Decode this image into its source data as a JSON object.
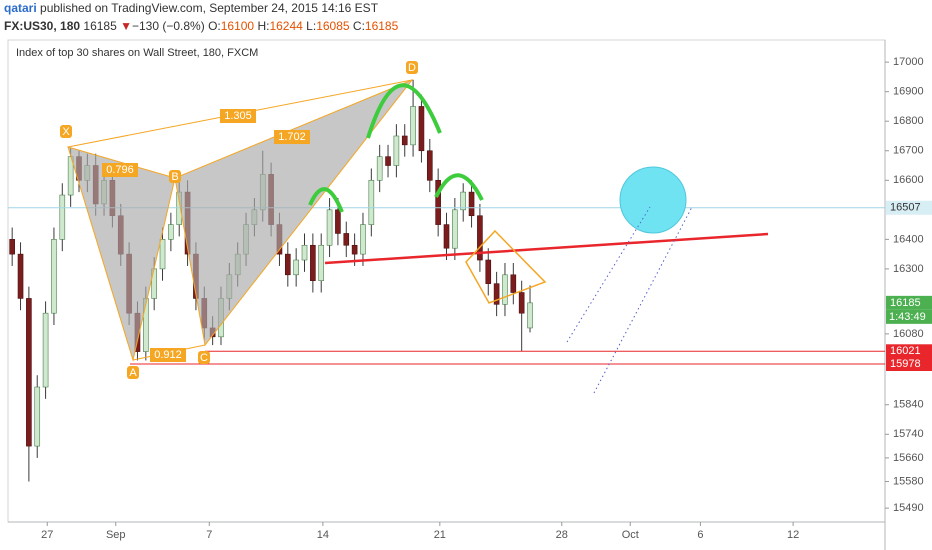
{
  "header": {
    "author": "qatari",
    "published": " published on TradingView.com, September 24, 2015 14:16 EST",
    "symbol": "FX:US30, 180",
    "last": 16185,
    "arrow": "▼",
    "change": "−130 (−0.8%)",
    "ohlc": [
      {
        "label": "O:",
        "value": 16100
      },
      {
        "label": "H:",
        "value": 16244
      },
      {
        "label": "L:",
        "value": 16085
      },
      {
        "label": "C:",
        "value": 16185
      }
    ]
  },
  "chart_data": {
    "type": "candlestick",
    "title": "Index of top 30 shares on Wall Street, 180, FXCM",
    "open": [
      16400,
      16350,
      16200,
      15700,
      15900,
      16150,
      16400,
      16550,
      16680,
      16600,
      16650,
      16520,
      16600,
      16480,
      16350,
      16150,
      16020,
      16200,
      16300,
      16400,
      16450,
      16560,
      16350,
      16200,
      16100,
      16070,
      16200,
      16280,
      16350,
      16450,
      16500,
      16620,
      16450,
      16350,
      16280,
      16330,
      16380,
      16260,
      16380,
      16500,
      16420,
      16380,
      16350,
      16450,
      16600,
      16680,
      16650,
      16750,
      16720,
      16850,
      16700,
      16600,
      16450,
      16370,
      16500,
      16560,
      16480,
      16330,
      16250,
      16180,
      16280,
      16220,
      16100
    ],
    "high": [
      16440,
      16390,
      16240,
      15940,
      16190,
      16440,
      16590,
      16710,
      16700,
      16690,
      16690,
      16640,
      16640,
      16520,
      16390,
      16190,
      16240,
      16340,
      16440,
      16490,
      16607,
      16600,
      16390,
      16240,
      16140,
      16240,
      16320,
      16390,
      16490,
      16540,
      16700,
      16660,
      16490,
      16390,
      16370,
      16420,
      16420,
      16420,
      16540,
      16540,
      16460,
      16420,
      16490,
      16640,
      16720,
      16720,
      16790,
      16790,
      16940,
      16890,
      16740,
      16640,
      16490,
      16540,
      16590,
      16600,
      16520,
      16370,
      16290,
      16320,
      16320,
      16260,
      16244
    ],
    "low": [
      16310,
      16160,
      15580,
      15660,
      15860,
      16110,
      16360,
      16510,
      16560,
      16560,
      16480,
      16480,
      16440,
      16310,
      16110,
      15990,
      15990,
      16160,
      16260,
      16360,
      16410,
      16310,
      16160,
      16060,
      16042,
      16042,
      16160,
      16240,
      16310,
      16410,
      16460,
      16410,
      16310,
      16240,
      16240,
      16290,
      16220,
      16220,
      16340,
      16380,
      16340,
      16310,
      16310,
      16410,
      16560,
      16610,
      16610,
      16680,
      16680,
      16660,
      16560,
      16410,
      16330,
      16330,
      16460,
      16440,
      16290,
      16210,
      16140,
      16140,
      16180,
      16021,
      16085
    ],
    "close": [
      16350,
      16200,
      15700,
      15900,
      16150,
      16400,
      16550,
      16680,
      16600,
      16650,
      16520,
      16600,
      16480,
      16350,
      16150,
      16020,
      16200,
      16300,
      16400,
      16450,
      16560,
      16350,
      16200,
      16100,
      16070,
      16200,
      16280,
      16350,
      16450,
      16500,
      16620,
      16450,
      16350,
      16280,
      16330,
      16380,
      16260,
      16380,
      16500,
      16420,
      16380,
      16350,
      16450,
      16600,
      16680,
      16650,
      16750,
      16720,
      16850,
      16700,
      16600,
      16450,
      16370,
      16500,
      16560,
      16480,
      16330,
      16250,
      16180,
      16280,
      16220,
      16150,
      16185
    ],
    "up_color": "#cfe9cf",
    "down_color": "#7b1d1d",
    "xlim": [
      -0.5,
      104.5
    ],
    "xticks": [
      {
        "value": 4.2,
        "label": "27"
      },
      {
        "value": 12.4,
        "label": "Sep"
      },
      {
        "value": 23.6,
        "label": "7"
      },
      {
        "value": 37.2,
        "label": "14"
      },
      {
        "value": 51.2,
        "label": "21"
      },
      {
        "value": 65.8,
        "label": "28"
      },
      {
        "value": 74.0,
        "label": "Oct"
      },
      {
        "value": 82.4,
        "label": "6"
      },
      {
        "value": 93.5,
        "label": "12"
      }
    ],
    "ylim": [
      15443,
      17075
    ],
    "yticks": [
      17000,
      16900,
      16800,
      16700,
      16600,
      16400,
      16300,
      16080,
      15840,
      15740,
      15660,
      15580,
      15490
    ],
    "price_labels": [
      {
        "value": 16507,
        "color": "#d7eef4",
        "line": true
      },
      {
        "value": 16185,
        "color": "#4caf50",
        "line": false
      },
      {
        "value": 16021,
        "color": "#e8262b",
        "line": true
      },
      {
        "value": 15978,
        "color": "#e8262b",
        "line": true
      }
    ],
    "countdown": "1:43:49",
    "pattern_points": [
      "X",
      "A",
      "B",
      "C",
      "D"
    ],
    "ratios": [
      "1.305",
      "1.702",
      "0.796",
      "0.912"
    ]
  }
}
